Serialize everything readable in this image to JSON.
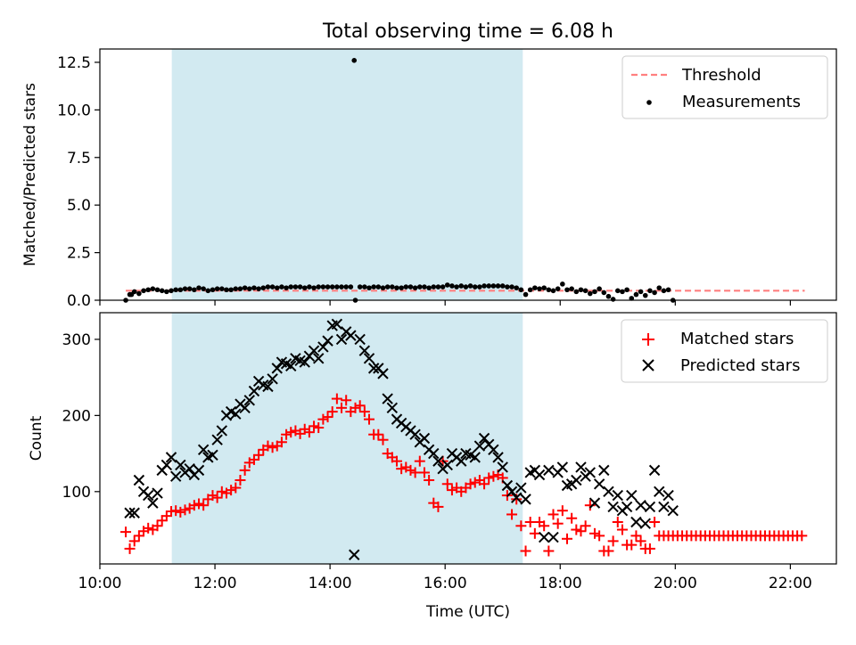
{
  "title": "Total observing time = 6.08 h",
  "colors": {
    "threshold": "#ff7f7f",
    "measurement": "#000000",
    "matched": "#ff0000",
    "predicted": "#000000",
    "span": "#add8e6"
  },
  "chart_data": [
    {
      "type": "scatter",
      "panel": "top",
      "ylabel": "Matched/Predicted stars",
      "xlim": [
        10.0,
        22.8
      ],
      "ylim": [
        0,
        13.2
      ],
      "yticks": [
        0.0,
        2.5,
        5.0,
        7.5,
        10.0,
        12.5
      ],
      "ytick_labels": [
        "0.0",
        "2.5",
        "5.0",
        "7.5",
        "10.0",
        "12.5"
      ],
      "shaded_span": [
        11.25,
        17.35
      ],
      "legend": {
        "placement": "upper right",
        "entries": [
          "Threshold",
          "Measurements"
        ]
      },
      "series": [
        {
          "name": "Threshold",
          "kind": "dashed-line",
          "x": [
            10.45,
            22.25
          ],
          "y": [
            0.5,
            0.5
          ]
        },
        {
          "name": "Measurements",
          "kind": "dots",
          "x": [
            10.45,
            10.52,
            10.6,
            10.68,
            10.76,
            10.84,
            10.92,
            11.0,
            11.08,
            11.16,
            11.24,
            11.32,
            11.4,
            11.48,
            11.56,
            11.64,
            11.72,
            11.8,
            11.88,
            11.96,
            12.04,
            12.12,
            12.2,
            12.28,
            12.36,
            12.44,
            12.52,
            12.6,
            12.68,
            12.76,
            12.84,
            12.92,
            13.0,
            13.08,
            13.16,
            13.24,
            13.32,
            13.4,
            13.48,
            13.56,
            13.64,
            13.72,
            13.8,
            13.88,
            13.96,
            14.04,
            14.12,
            14.2,
            14.28,
            14.36,
            14.44,
            14.52,
            14.6,
            14.68,
            14.76,
            14.84,
            14.92,
            15.0,
            15.08,
            15.16,
            15.24,
            15.32,
            15.4,
            15.48,
            15.56,
            15.64,
            15.72,
            15.8,
            15.88,
            15.96,
            16.04,
            16.12,
            16.2,
            16.28,
            16.36,
            16.44,
            16.52,
            16.6,
            16.68,
            16.76,
            16.84,
            16.92,
            17.0,
            17.08,
            17.16,
            17.24,
            17.32,
            17.4,
            17.48,
            17.56,
            17.64,
            17.72,
            17.8,
            17.88,
            17.96,
            18.04,
            18.12,
            18.2,
            18.28,
            18.36,
            18.44,
            18.52,
            18.6,
            18.68,
            18.76,
            18.84,
            18.92,
            19.0,
            19.08,
            19.16,
            19.24,
            19.32,
            19.4,
            19.48,
            19.56,
            19.64,
            19.72,
            19.8,
            19.88,
            19.96,
            10.55,
            14.42
          ],
          "y": [
            0.0,
            0.3,
            0.45,
            0.35,
            0.5,
            0.55,
            0.6,
            0.55,
            0.5,
            0.45,
            0.5,
            0.55,
            0.55,
            0.6,
            0.6,
            0.55,
            0.65,
            0.6,
            0.5,
            0.55,
            0.6,
            0.6,
            0.55,
            0.55,
            0.6,
            0.6,
            0.65,
            0.6,
            0.65,
            0.6,
            0.65,
            0.7,
            0.7,
            0.65,
            0.7,
            0.65,
            0.7,
            0.7,
            0.7,
            0.65,
            0.7,
            0.65,
            0.7,
            0.7,
            0.7,
            0.7,
            0.7,
            0.7,
            0.7,
            0.7,
            0.0,
            0.7,
            0.7,
            0.65,
            0.7,
            0.7,
            0.65,
            0.7,
            0.7,
            0.65,
            0.65,
            0.7,
            0.7,
            0.65,
            0.7,
            0.7,
            0.65,
            0.7,
            0.7,
            0.7,
            0.8,
            0.75,
            0.7,
            0.75,
            0.7,
            0.75,
            0.7,
            0.7,
            0.75,
            0.75,
            0.75,
            0.75,
            0.75,
            0.7,
            0.7,
            0.65,
            0.55,
            0.3,
            0.55,
            0.65,
            0.6,
            0.65,
            0.55,
            0.5,
            0.6,
            0.85,
            0.55,
            0.6,
            0.45,
            0.55,
            0.5,
            0.35,
            0.45,
            0.6,
            0.4,
            0.2,
            0.05,
            0.5,
            0.45,
            0.55,
            0.1,
            0.3,
            0.45,
            0.25,
            0.5,
            0.4,
            0.65,
            0.5,
            0.55,
            0.0,
            0.3,
            12.6
          ]
        }
      ]
    },
    {
      "type": "scatter",
      "panel": "bottom",
      "xlabel": "Time (UTC)",
      "ylabel": "Count",
      "xlim": [
        10.0,
        22.8
      ],
      "ylim": [
        5,
        335
      ],
      "xticks": [
        10,
        12,
        14,
        16,
        18,
        20,
        22
      ],
      "xtick_labels": [
        "10:00",
        "12:00",
        "14:00",
        "16:00",
        "18:00",
        "20:00",
        "22:00"
      ],
      "yticks": [
        100,
        200,
        300
      ],
      "ytick_labels": [
        "100",
        "200",
        "300"
      ],
      "shaded_span": [
        11.25,
        17.35
      ],
      "legend": {
        "placement": "upper right",
        "entries": [
          "Matched stars",
          "Predicted stars"
        ]
      },
      "series": [
        {
          "name": "Matched stars",
          "marker": "plus",
          "x": [
            10.45,
            10.52,
            10.6,
            10.68,
            10.76,
            10.84,
            10.92,
            11.0,
            11.08,
            11.16,
            11.24,
            11.32,
            11.4,
            11.48,
            11.56,
            11.64,
            11.72,
            11.8,
            11.88,
            11.96,
            12.04,
            12.12,
            12.2,
            12.28,
            12.36,
            12.44,
            12.52,
            12.6,
            12.68,
            12.76,
            12.84,
            12.92,
            13.0,
            13.08,
            13.16,
            13.24,
            13.32,
            13.4,
            13.48,
            13.56,
            13.64,
            13.72,
            13.8,
            13.88,
            13.96,
            14.04,
            14.12,
            14.2,
            14.28,
            14.36,
            14.44,
            14.52,
            14.6,
            14.68,
            14.76,
            14.84,
            14.92,
            15.0,
            15.08,
            15.16,
            15.24,
            15.32,
            15.4,
            15.48,
            15.56,
            15.64,
            15.72,
            15.8,
            15.88,
            15.96,
            16.04,
            16.12,
            16.2,
            16.28,
            16.36,
            16.44,
            16.52,
            16.6,
            16.68,
            16.76,
            16.84,
            16.92,
            17.0,
            17.08,
            17.16,
            17.24,
            17.32,
            17.4,
            17.48,
            17.56,
            17.64,
            17.72,
            17.8,
            17.88,
            17.96,
            18.04,
            18.12,
            18.2,
            18.28,
            18.36,
            18.44,
            18.52,
            18.6,
            18.68,
            18.76,
            18.84,
            18.92,
            19.0,
            19.08,
            19.16,
            19.24,
            19.32,
            19.4,
            19.48,
            19.56,
            19.64,
            19.72,
            19.8,
            19.88,
            19.96,
            20.04,
            20.12,
            20.2,
            20.28,
            20.36,
            20.44,
            20.52,
            20.6,
            20.68,
            20.76,
            20.84,
            20.92,
            21.0,
            21.08,
            21.16,
            21.24,
            21.32,
            21.4,
            21.48,
            21.56,
            21.64,
            21.72,
            21.8,
            21.88,
            21.96,
            22.04,
            22.12,
            22.2
          ],
          "y": [
            47,
            25,
            35,
            42,
            48,
            52,
            50,
            55,
            62,
            68,
            74,
            75,
            73,
            76,
            78,
            82,
            84,
            82,
            90,
            95,
            92,
            100,
            98,
            102,
            105,
            115,
            128,
            138,
            142,
            148,
            155,
            160,
            158,
            160,
            165,
            175,
            178,
            180,
            176,
            182,
            178,
            186,
            184,
            195,
            198,
            205,
            222,
            210,
            220,
            205,
            210,
            213,
            205,
            195,
            175,
            175,
            168,
            150,
            145,
            140,
            130,
            132,
            128,
            125,
            140,
            125,
            115,
            85,
            80,
            140,
            110,
            102,
            105,
            100,
            105,
            110,
            112,
            115,
            110,
            118,
            120,
            122,
            118,
            95,
            70,
            90,
            55,
            22,
            60,
            45,
            60,
            55,
            22,
            70,
            58,
            75,
            38,
            65,
            50,
            48,
            55,
            82,
            45,
            42,
            22,
            22,
            35,
            60,
            50,
            30,
            30,
            42,
            35,
            25,
            25,
            60,
            42,
            42,
            42,
            42,
            42,
            42,
            42,
            42,
            42,
            42,
            42,
            42,
            42,
            42,
            42,
            42,
            42,
            42,
            42,
            42,
            42,
            42,
            42,
            42,
            42,
            42,
            42,
            42,
            42,
            42,
            42,
            42
          ]
        },
        {
          "name": "Predicted stars",
          "marker": "x",
          "x": [
            10.52,
            10.6,
            10.68,
            10.76,
            10.84,
            10.92,
            11.0,
            11.08,
            11.16,
            11.24,
            11.32,
            11.4,
            11.48,
            11.56,
            11.64,
            11.72,
            11.8,
            11.88,
            11.96,
            12.04,
            12.12,
            12.2,
            12.28,
            12.36,
            12.44,
            12.52,
            12.6,
            12.68,
            12.76,
            12.84,
            12.92,
            13.0,
            13.08,
            13.16,
            13.24,
            13.32,
            13.4,
            13.48,
            13.56,
            13.64,
            13.72,
            13.8,
            13.88,
            13.96,
            14.04,
            14.12,
            14.2,
            14.28,
            14.36,
            14.42,
            14.52,
            14.6,
            14.68,
            14.76,
            14.84,
            14.92,
            15.0,
            15.08,
            15.16,
            15.24,
            15.32,
            15.4,
            15.48,
            15.56,
            15.64,
            15.72,
            15.8,
            15.88,
            15.96,
            16.04,
            16.12,
            16.2,
            16.28,
            16.36,
            16.44,
            16.52,
            16.6,
            16.68,
            16.76,
            16.84,
            16.92,
            17.0,
            17.08,
            17.16,
            17.24,
            17.32,
            17.4,
            17.48,
            17.56,
            17.64,
            17.72,
            17.8,
            17.88,
            17.96,
            18.04,
            18.12,
            18.2,
            18.28,
            18.36,
            18.44,
            18.52,
            18.6,
            18.68,
            18.76,
            18.84,
            18.92,
            19.0,
            19.08,
            19.16,
            19.24,
            19.32,
            19.4,
            19.48,
            19.56,
            19.64,
            19.72,
            19.8,
            19.88,
            19.96
          ],
          "y": [
            72,
            72,
            115,
            100,
            95,
            85,
            98,
            128,
            135,
            145,
            120,
            135,
            125,
            130,
            122,
            128,
            155,
            145,
            148,
            168,
            180,
            200,
            205,
            202,
            215,
            210,
            220,
            232,
            245,
            240,
            238,
            248,
            262,
            270,
            268,
            265,
            275,
            272,
            270,
            278,
            285,
            275,
            290,
            298,
            318,
            320,
            300,
            310,
            305,
            17,
            300,
            285,
            275,
            262,
            262,
            255,
            222,
            210,
            195,
            190,
            185,
            180,
            175,
            165,
            170,
            155,
            150,
            140,
            130,
            135,
            150,
            145,
            140,
            150,
            148,
            145,
            160,
            170,
            162,
            155,
            145,
            132,
            108,
            100,
            92,
            105,
            90,
            125,
            128,
            122,
            40,
            128,
            40,
            125,
            132,
            108,
            110,
            115,
            132,
            120,
            125,
            85,
            110,
            128,
            100,
            80,
            95,
            75,
            80,
            95,
            60,
            82,
            58,
            80,
            128,
            100,
            80,
            95,
            75
          ]
        }
      ]
    }
  ]
}
